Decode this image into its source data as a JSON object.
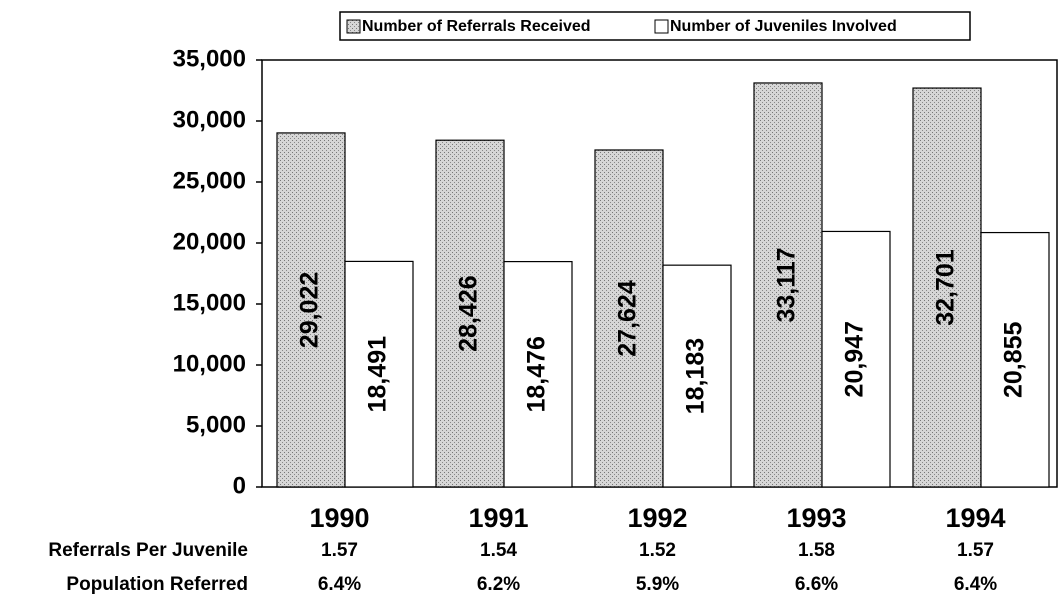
{
  "chart_data": {
    "type": "bar",
    "categories": [
      "1990",
      "1991",
      "1992",
      "1993",
      "1994"
    ],
    "series": [
      {
        "name": "Number of Referrals Received",
        "color": "#c4c4c4",
        "values": [
          29022,
          28426,
          27624,
          33117,
          32701
        ],
        "value_labels": [
          "29,022",
          "28,426",
          "27,624",
          "33,117",
          "32,701"
        ]
      },
      {
        "name": "Number of Juveniles Involved",
        "color": "#ffffff",
        "values": [
          18491,
          18476,
          18183,
          20947,
          20855
        ],
        "value_labels": [
          "18,491",
          "18,476",
          "18,183",
          "20,947",
          "20,855"
        ]
      }
    ],
    "ylim": [
      0,
      35000
    ],
    "yticks": [
      0,
      {
        "value": 5000,
        "label": "5,000"
      },
      {
        "value": 10000,
        "label": "10,000"
      },
      {
        "value": 15000,
        "label": "15,000"
      },
      {
        "value": 20000,
        "label": "20,000"
      },
      {
        "value": 25000,
        "label": "25,000"
      },
      {
        "value": 30000,
        "label": "30,000"
      },
      {
        "value": 35000,
        "label": "35,000"
      }
    ],
    "legend": "top",
    "table_rows": [
      {
        "label": "Referrals Per Juvenile",
        "values": [
          1.57,
          1.54,
          1.52,
          1.58,
          1.57
        ]
      },
      {
        "label": "Population Referred",
        "values": [
          6.4,
          6.2,
          5.9,
          6.6,
          6.4
        ],
        "value_labels": [
          "6.4%",
          "6.2%",
          "5.9%",
          "6.6%",
          "6.4%"
        ]
      }
    ]
  }
}
